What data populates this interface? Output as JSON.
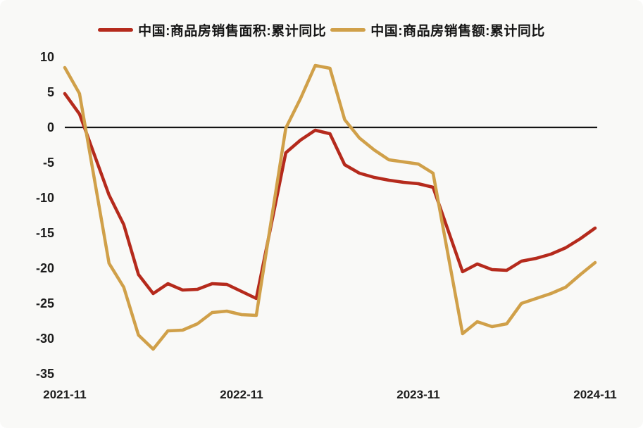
{
  "chart_data": {
    "type": "line",
    "title": "",
    "xlabel": "",
    "ylabel": "",
    "unit": "%",
    "grid": false,
    "legend_position": "top",
    "axis_color": "#141414",
    "background_color": "#f9f9f7",
    "ylim": [
      -35,
      10
    ],
    "yticks": [
      10,
      5,
      0,
      -5,
      -10,
      -15,
      -20,
      -25,
      -30,
      -35
    ],
    "xticks": [
      "2021-11",
      "2022-11",
      "2023-11",
      "2024-11"
    ],
    "x": [
      "2021-11",
      "2021-12",
      "2022-01",
      "2022-02",
      "2022-03",
      "2022-04",
      "2022-05",
      "2022-06",
      "2022-07",
      "2022-08",
      "2022-09",
      "2022-10",
      "2022-11",
      "2022-12",
      "2023-01",
      "2023-02",
      "2023-03",
      "2023-04",
      "2023-05",
      "2023-06",
      "2023-07",
      "2023-08",
      "2023-09",
      "2023-10",
      "2023-11",
      "2023-12",
      "2024-01",
      "2024-02",
      "2024-03",
      "2024-04",
      "2024-05",
      "2024-06",
      "2024-07",
      "2024-08",
      "2024-09",
      "2024-10",
      "2024-11"
    ],
    "series": [
      {
        "name": "中国:商品房销售面积:累计同比",
        "color": "#b52a1c",
        "values": [
          4.8,
          1.9,
          null,
          -9.6,
          -13.8,
          -20.9,
          -23.6,
          -22.2,
          -23.1,
          -23.0,
          -22.2,
          -22.3,
          -23.3,
          -24.3,
          null,
          -3.6,
          -1.8,
          -0.4,
          -0.9,
          -5.3,
          -6.5,
          -7.1,
          -7.5,
          -7.8,
          -8.0,
          -8.5,
          null,
          -20.5,
          -19.4,
          -20.2,
          -20.3,
          -19.0,
          -18.6,
          -18.0,
          -17.1,
          -15.8,
          -14.3
        ]
      },
      {
        "name": "中国:商品房销售额:累计同比",
        "color": "#d0a049",
        "values": [
          8.5,
          4.8,
          null,
          -19.3,
          -22.7,
          -29.5,
          -31.5,
          -28.9,
          -28.8,
          -27.9,
          -26.3,
          -26.1,
          -26.6,
          -26.7,
          null,
          -0.1,
          4.1,
          8.8,
          8.4,
          1.1,
          -1.5,
          -3.2,
          -4.6,
          -4.9,
          -5.2,
          -6.5,
          null,
          -29.3,
          -27.6,
          -28.3,
          -27.9,
          -25.0,
          -24.3,
          -23.6,
          -22.7,
          -20.9,
          -19.2
        ]
      }
    ]
  }
}
